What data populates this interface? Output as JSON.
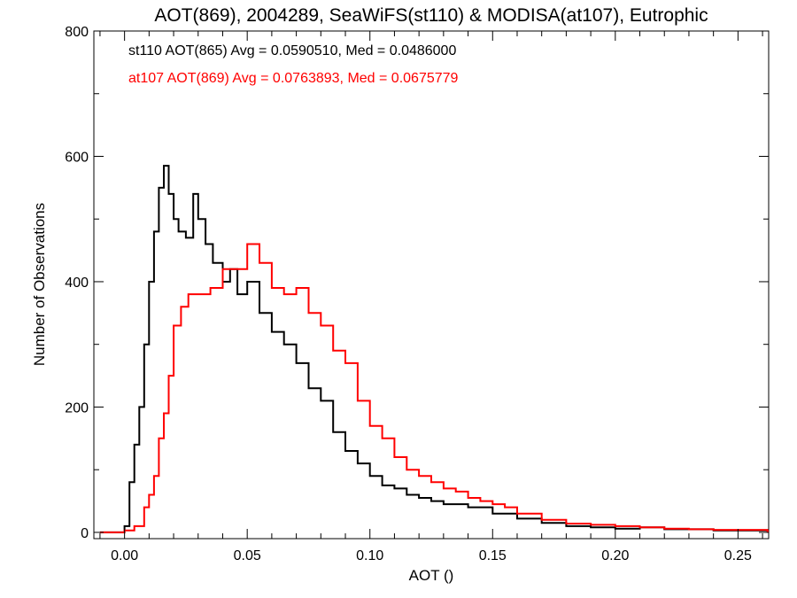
{
  "chart_data": {
    "type": "line",
    "title": "AOT(869), 2004289, SeaWiFS(st110) & MODISA(at107), Eutrophic",
    "xlabel": "AOT ()",
    "ylabel": "Number of Observations",
    "xlim": [
      -0.0125,
      0.2625
    ],
    "ylim": [
      -10,
      800
    ],
    "xticks": [
      0.0,
      0.05,
      0.1,
      0.15,
      0.2,
      0.25
    ],
    "xtick_labels": [
      "0.00",
      "0.05",
      "0.10",
      "0.15",
      "0.20",
      "0.25"
    ],
    "yticks": [
      0,
      200,
      400,
      600,
      800
    ],
    "ytick_labels": [
      "0",
      "200",
      "400",
      "600",
      "800"
    ],
    "grid": false,
    "legend_placement": "top-left",
    "series": [
      {
        "name": "st110 AOT(865) Avg = 0.0590510, Med = 0.0486000",
        "color": "#000000",
        "step": "histogram",
        "x": [
          -0.01,
          0.0,
          0.002,
          0.004,
          0.006,
          0.008,
          0.01,
          0.012,
          0.014,
          0.016,
          0.018,
          0.02,
          0.022,
          0.025,
          0.028,
          0.03,
          0.033,
          0.036,
          0.04,
          0.043,
          0.046,
          0.05,
          0.055,
          0.06,
          0.065,
          0.07,
          0.075,
          0.08,
          0.085,
          0.09,
          0.095,
          0.1,
          0.105,
          0.11,
          0.115,
          0.12,
          0.125,
          0.13,
          0.14,
          0.15,
          0.16,
          0.17,
          0.18,
          0.19,
          0.2,
          0.21,
          0.22,
          0.23,
          0.24,
          0.25,
          0.262
        ],
        "values": [
          0,
          10,
          80,
          140,
          200,
          300,
          400,
          480,
          550,
          585,
          540,
          500,
          480,
          470,
          540,
          500,
          460,
          430,
          400,
          420,
          380,
          400,
          350,
          320,
          300,
          270,
          230,
          210,
          160,
          130,
          110,
          90,
          75,
          70,
          60,
          55,
          50,
          45,
          40,
          30,
          22,
          15,
          10,
          8,
          6,
          8,
          5,
          5,
          3,
          3,
          3
        ]
      },
      {
        "name": "at107 AOT(869) Avg = 0.0763893, Med = 0.0675779",
        "color": "#ff0000",
        "step": "histogram",
        "x": [
          -0.01,
          0.0,
          0.004,
          0.008,
          0.01,
          0.012,
          0.014,
          0.016,
          0.018,
          0.02,
          0.023,
          0.026,
          0.03,
          0.035,
          0.04,
          0.045,
          0.05,
          0.055,
          0.06,
          0.065,
          0.07,
          0.075,
          0.08,
          0.085,
          0.09,
          0.095,
          0.1,
          0.105,
          0.11,
          0.115,
          0.12,
          0.125,
          0.13,
          0.135,
          0.14,
          0.145,
          0.15,
          0.155,
          0.16,
          0.17,
          0.18,
          0.19,
          0.2,
          0.21,
          0.22,
          0.23,
          0.24,
          0.25,
          0.262
        ],
        "values": [
          0,
          3,
          10,
          40,
          60,
          90,
          150,
          190,
          250,
          330,
          360,
          380,
          380,
          390,
          420,
          420,
          460,
          430,
          390,
          380,
          390,
          350,
          330,
          290,
          270,
          210,
          170,
          150,
          120,
          100,
          90,
          80,
          70,
          65,
          55,
          50,
          45,
          40,
          30,
          20,
          14,
          12,
          10,
          8,
          6,
          5,
          4,
          4,
          2
        ]
      }
    ]
  }
}
